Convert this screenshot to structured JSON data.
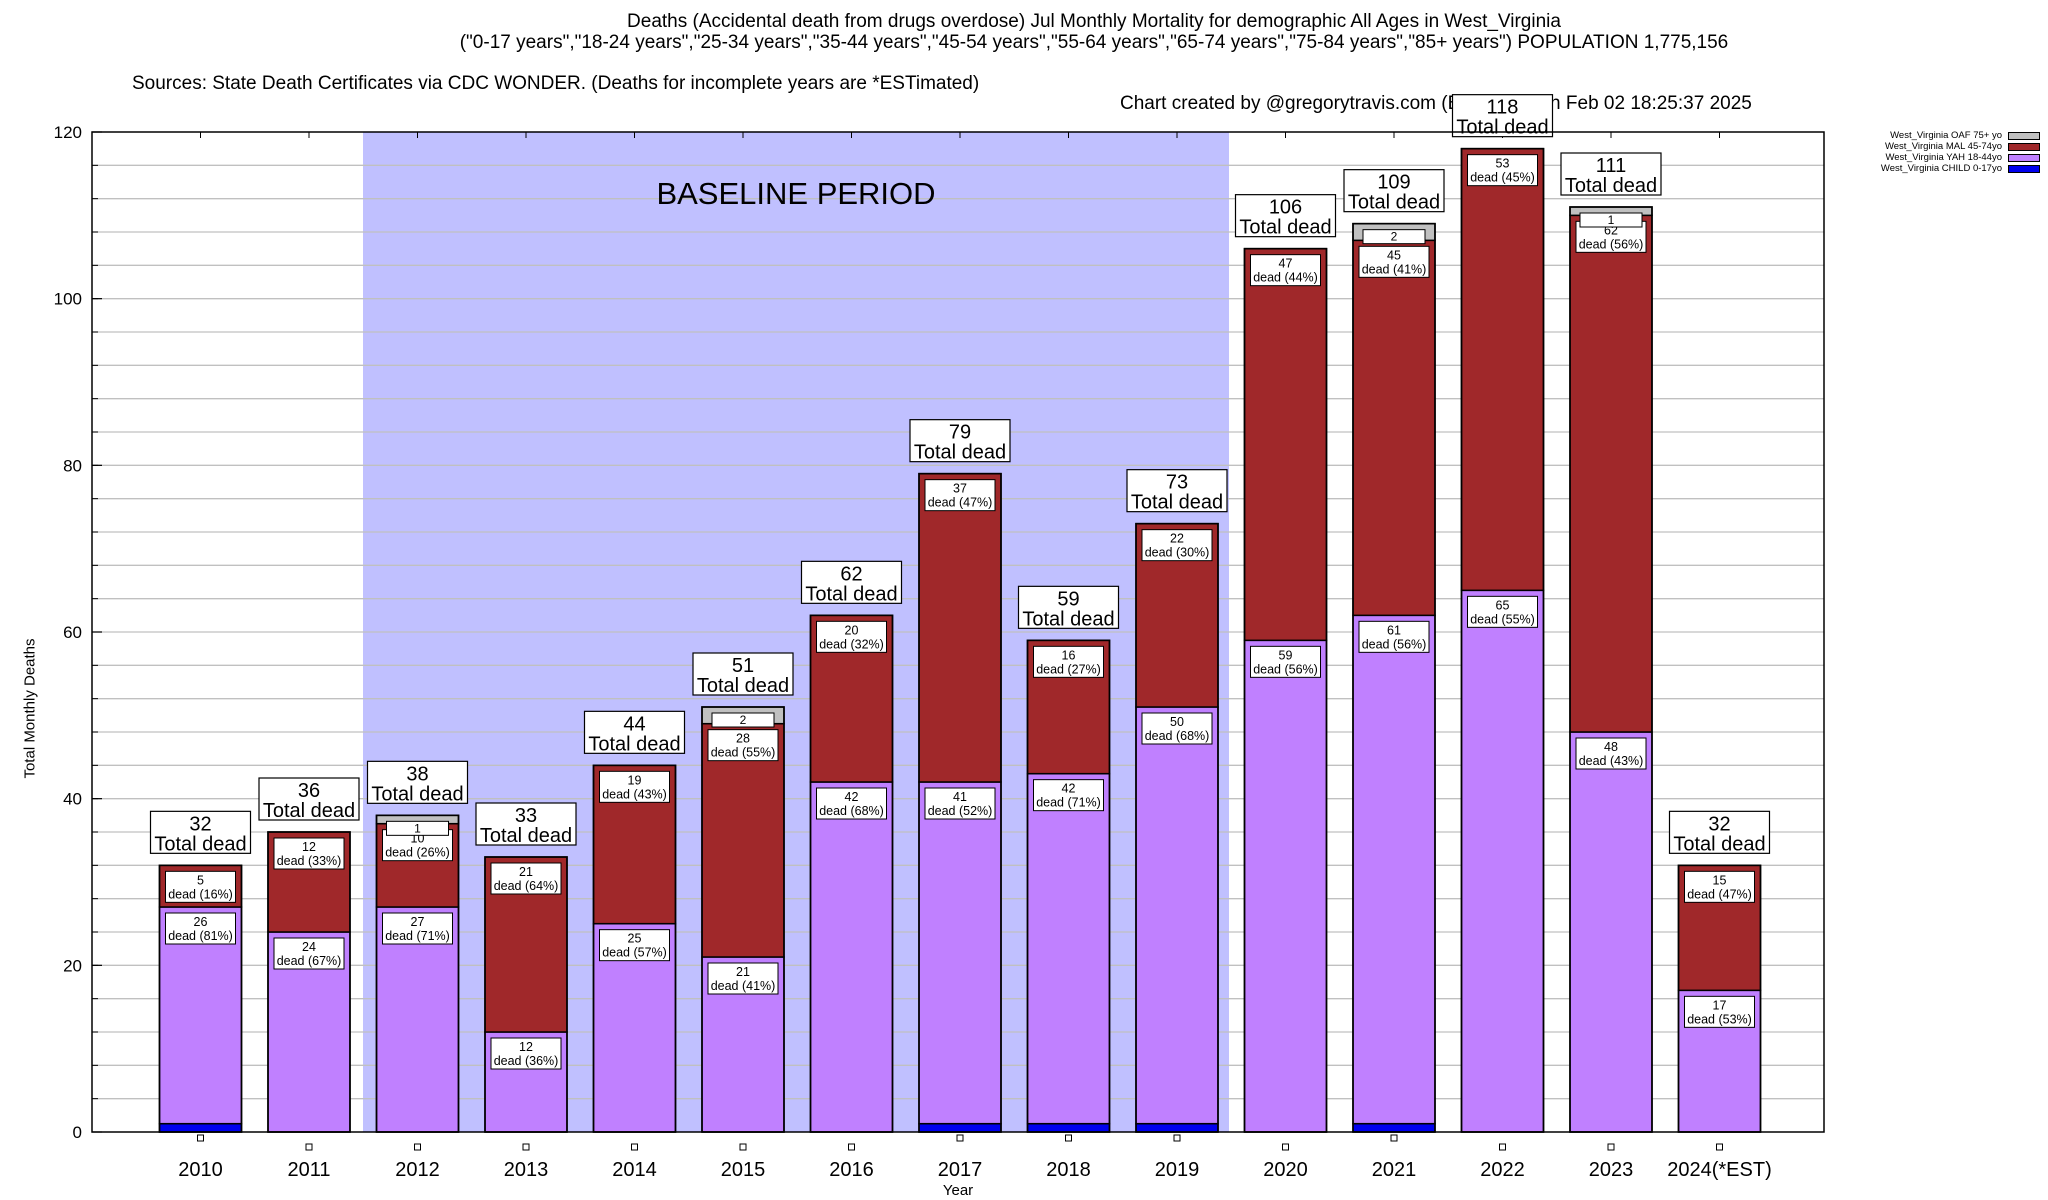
{
  "header": {
    "title_line1": "Deaths (Accidental death from drugs overdose) Jul Monthly Mortality for demographic All Ages in West_Virginia",
    "title_line2": "(\"0-17 years\",\"18-24 years\",\"25-34 years\",\"35-44 years\",\"45-54 years\",\"55-64 years\",\"65-74 years\",\"75-84 years\",\"85+ years\") POPULATION 1,775,156",
    "sources": "Sources: State Death Certificates via CDC WONDER. (Deaths for incomplete years are *ESTimated)",
    "credit": "Chart created by @gregorytravis.com (Bsky) on Sun Feb 02 18:25:37 2025"
  },
  "chart_data": {
    "type": "bar",
    "stacked": true,
    "title": "Deaths (Accidental death from drugs overdose) Jul Monthly Mortality for demographic All Ages in West_Virginia",
    "xlabel": "Year",
    "ylabel": "Total Monthly Deaths",
    "ylim": [
      0,
      120
    ],
    "yticks": [
      0,
      20,
      40,
      60,
      80,
      100,
      120
    ],
    "ygrid_step": 4,
    "grid": true,
    "legend_position": "top-right, outside plot",
    "annotation": "BASELINE PERIOD",
    "baseline_period": [
      "2012",
      "2019"
    ],
    "total_label_suffix": "Total dead",
    "segment_label_word": "dead",
    "categories": [
      "2010",
      "2011",
      "2012",
      "2013",
      "2014",
      "2015",
      "2016",
      "2017",
      "2018",
      "2019",
      "2020",
      "2021",
      "2022",
      "2023",
      "2024(*EST)"
    ],
    "totals": [
      32,
      36,
      38,
      33,
      44,
      51,
      62,
      79,
      59,
      73,
      106,
      109,
      118,
      111,
      32
    ],
    "series": [
      {
        "name": "West_Virginia CHILD 0-17yo",
        "color": "#0000ee",
        "values": [
          1,
          0,
          0,
          0,
          0,
          0,
          0,
          1,
          1,
          1,
          0,
          1,
          0,
          0,
          0
        ],
        "pct": [
          null,
          null,
          null,
          null,
          null,
          null,
          null,
          null,
          null,
          null,
          null,
          null,
          null,
          null,
          null
        ]
      },
      {
        "name": "West_Virginia YAH 18-44yo",
        "color": "#c080ff",
        "values": [
          26,
          24,
          27,
          12,
          25,
          21,
          42,
          41,
          42,
          50,
          59,
          61,
          65,
          48,
          17
        ],
        "pct": [
          "81%",
          "67%",
          "71%",
          "36%",
          "57%",
          "41%",
          "68%",
          "52%",
          "71%",
          "68%",
          "56%",
          "56%",
          "55%",
          "43%",
          "53%"
        ]
      },
      {
        "name": "West_Virginia MAL 45-74yo",
        "color": "#a0282a",
        "values": [
          5,
          12,
          10,
          21,
          19,
          28,
          20,
          37,
          16,
          22,
          47,
          45,
          53,
          62,
          15
        ],
        "pct": [
          "16%",
          "33%",
          "26%",
          "64%",
          "43%",
          "55%",
          "32%",
          "47%",
          "27%",
          "30%",
          "44%",
          "41%",
          "45%",
          "56%",
          "47%"
        ]
      },
      {
        "name": "West_Virginia OAF 75+ yo",
        "color": "#c0c0c0",
        "values": [
          0,
          0,
          1,
          0,
          0,
          2,
          0,
          0,
          0,
          0,
          0,
          2,
          0,
          1,
          0
        ],
        "pct": [
          null,
          null,
          null,
          null,
          null,
          null,
          null,
          null,
          null,
          null,
          null,
          null,
          null,
          null,
          null
        ]
      }
    ],
    "legend": [
      "West_Virginia OAF 75+ yo",
      "West_Virginia MAL 45-74yo",
      "West_Virginia YAH 18-44yo",
      "West_Virginia CHILD 0-17yo"
    ],
    "colors": {
      "baseline_band": "#c0c0ff",
      "grid": "#c0c0c0"
    }
  }
}
